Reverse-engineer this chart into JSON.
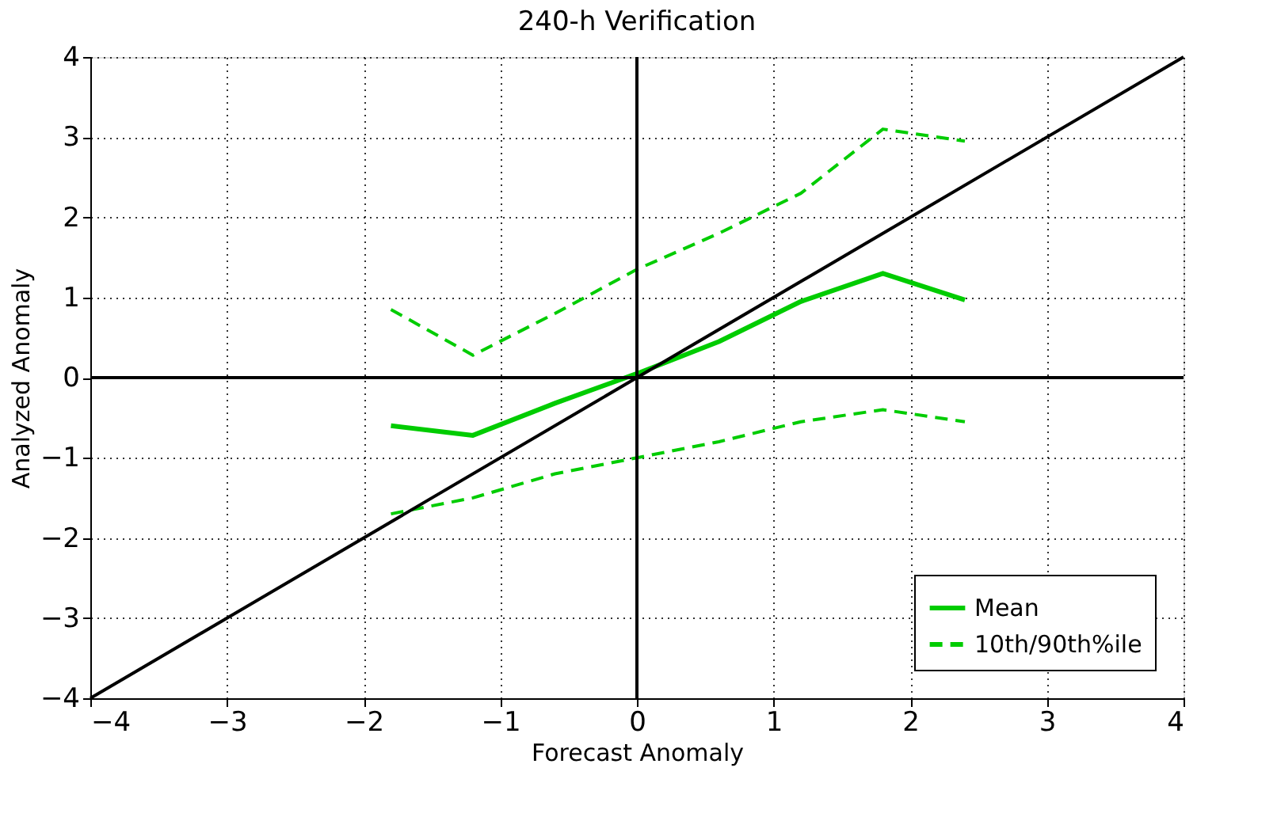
{
  "chart_data": {
    "type": "line",
    "title": "240-h Verification",
    "xlabel": "Forecast Anomaly",
    "ylabel": "Analyzed Anomaly",
    "xlim": [
      -4,
      4
    ],
    "ylim": [
      -4,
      4
    ],
    "xticks": [
      -4,
      -3,
      -2,
      -1,
      0,
      1,
      2,
      3,
      4
    ],
    "yticks": [
      -4,
      -3,
      -2,
      -1,
      0,
      1,
      2,
      3,
      4
    ],
    "grid": true,
    "legend": "bottom right",
    "marker": "none",
    "series": [
      {
        "name": "Mean",
        "color": "#00cc00",
        "line_style": "solid",
        "x": [
          -1.8,
          -1.2,
          -0.6,
          0,
          0.6,
          1.2,
          1.8,
          2.4
        ],
        "values": [
          -0.6,
          -0.72,
          -0.32,
          0.05,
          0.45,
          0.95,
          1.3,
          0.97
        ]
      },
      {
        "name": "10th/90th%ile",
        "color": "#00cc00",
        "line_style": "dashed",
        "x": [
          -1.8,
          -1.2,
          -0.6,
          0,
          0.6,
          1.2,
          1.8,
          2.4
        ],
        "values": [
          0.85,
          0.28,
          0.8,
          1.35,
          1.8,
          2.3,
          3.1,
          2.95
        ]
      },
      {
        "color": "#00cc00",
        "line_style": "dashed",
        "x": [
          -1.8,
          -1.2,
          -0.6,
          0,
          0.6,
          1.2,
          1.8,
          2.4
        ],
        "values": [
          -1.7,
          -1.5,
          -1.2,
          -1.0,
          -0.8,
          -0.55,
          -0.4,
          -0.55
        ]
      },
      {
        "color": "#000000",
        "line_style": "solid",
        "x": [
          -4,
          4
        ],
        "values": [
          -4,
          4
        ]
      },
      {
        "color": "#000000",
        "line_style": "solid",
        "x": [
          0,
          0
        ],
        "values": [
          -4,
          4
        ]
      },
      {
        "color": "#000000",
        "line_style": "solid",
        "x": [
          -4,
          4
        ],
        "values": [
          0,
          0
        ]
      }
    ]
  }
}
